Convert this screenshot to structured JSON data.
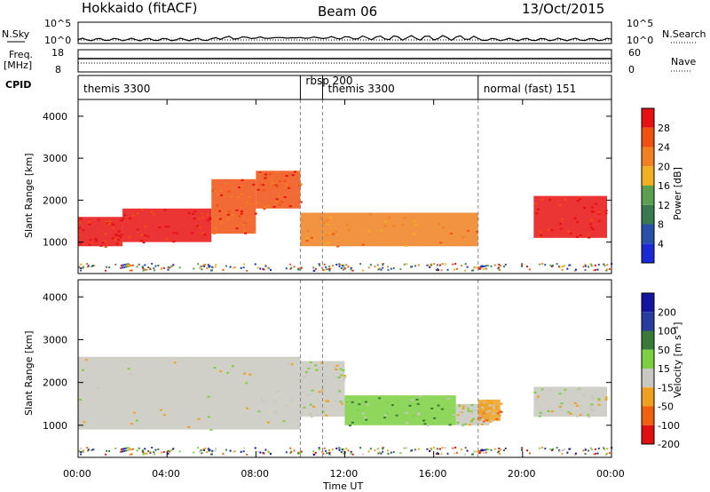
{
  "header": {
    "station": "Hokkaido (fitACF)",
    "beam": "Beam 06",
    "date": "13/Oct/2015"
  },
  "noise_panel": {
    "left_label": "N.Sky",
    "right_label": "N.Search",
    "left_ticks": [
      "10^5",
      "10^0"
    ],
    "right_ticks": [
      "10^5",
      "10^0"
    ]
  },
  "freq_panel": {
    "left_label_1": "Freq.",
    "left_label_2": "[MHz]",
    "left_ticks": [
      "18",
      "8"
    ],
    "right_ticks": [
      "60",
      "0"
    ],
    "right_label": "Nave"
  },
  "cpid_panel": {
    "label": "CPID",
    "segments": [
      {
        "text": "themis 3300",
        "start_hour": 0
      },
      {
        "text": "rbsp 200",
        "start_hour": 10
      },
      {
        "text": "themis 3300",
        "start_hour": 11
      },
      {
        "text": "normal (fast) 151",
        "start_hour": 18
      }
    ]
  },
  "colors": {
    "power": [
      "#1a28d8",
      "#2a4fa8",
      "#3a7a50",
      "#5aa050",
      "#f0b020",
      "#f08020",
      "#f05010",
      "#e81010"
    ],
    "velocity": [
      "#1414a0",
      "#283ca0",
      "#3a7a38",
      "#7ad040",
      "#c8c8c0",
      "#f0a020",
      "#f06010",
      "#e01010"
    ]
  },
  "chart_data": [
    {
      "type": "heatmap",
      "name": "power",
      "ylabel": "Slant Range [km]",
      "yticks": [
        "1000",
        "2000",
        "3000",
        "4000"
      ],
      "colorbar_label": "Power [dB]",
      "colorbar_ticks": [
        "4",
        "8",
        "12",
        "16",
        "20",
        "24",
        "28"
      ],
      "regions": [
        {
          "x0": 0.0,
          "x1": 2.0,
          "y0": 900,
          "y1": 1600,
          "color": 7
        },
        {
          "x0": 2.0,
          "x1": 6.0,
          "y0": 1000,
          "y1": 1800,
          "color": 7
        },
        {
          "x0": 6.0,
          "x1": 8.0,
          "y0": 1200,
          "y1": 2500,
          "color": 6
        },
        {
          "x0": 8.0,
          "x1": 10.0,
          "y0": 1800,
          "y1": 2700,
          "color": 6
        },
        {
          "x0": 10.0,
          "x1": 18.0,
          "y0": 900,
          "y1": 1700,
          "color": 5
        },
        {
          "x0": 20.5,
          "x1": 23.8,
          "y0": 1100,
          "y1": 2100,
          "color": 7
        }
      ]
    },
    {
      "type": "heatmap",
      "name": "velocity",
      "xlabel": "Time UT",
      "ylabel": "Slant Range [km]",
      "xticks": [
        "00:00",
        "04:00",
        "08:00",
        "12:00",
        "16:00",
        "20:00",
        "00:00"
      ],
      "yticks": [
        "1000",
        "2000",
        "3000",
        "4000"
      ],
      "colorbar_label": "Velocity [m s⁻¹]",
      "colorbar_ticks": [
        "200",
        "100",
        "50",
        "15",
        "-15",
        "-50",
        "-100",
        "-200"
      ],
      "regions": [
        {
          "x0": 0.0,
          "x1": 10.0,
          "y0": 900,
          "y1": 2600,
          "color": 4
        },
        {
          "x0": 10.0,
          "x1": 12.0,
          "y0": 1200,
          "y1": 2500,
          "color": 4
        },
        {
          "x0": 12.0,
          "x1": 17.0,
          "y0": 1000,
          "y1": 1700,
          "color": 3
        },
        {
          "x0": 17.0,
          "x1": 18.5,
          "y0": 1000,
          "y1": 1500,
          "color": 4
        },
        {
          "x0": 18.0,
          "x1": 19.0,
          "y0": 1100,
          "y1": 1600,
          "color": 5
        },
        {
          "x0": 20.5,
          "x1": 23.8,
          "y0": 1200,
          "y1": 1900,
          "color": 4
        }
      ]
    }
  ]
}
